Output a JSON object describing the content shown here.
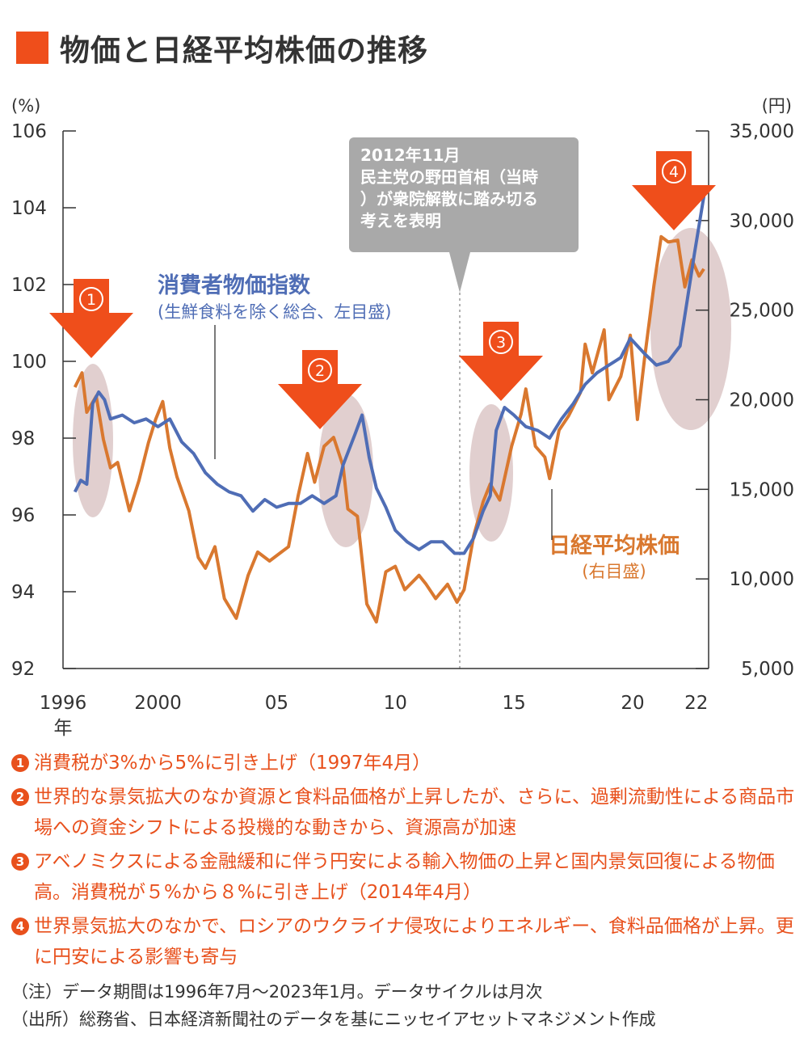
{
  "title": "物価と日経平均株価の推移",
  "colors": {
    "accent": "#ef4e1b",
    "cpi": "#4f6db5",
    "nikkei": "#d9782f",
    "highlight": "#c9a7a7",
    "callout_bg": "#a9a9a9"
  },
  "chart_data": {
    "type": "line",
    "left_axis": {
      "unit": "(%)",
      "ticks": [
        "106",
        "104",
        "102",
        "100",
        "98",
        "96",
        "94",
        "92"
      ],
      "ylim": [
        92,
        106
      ]
    },
    "right_axis": {
      "unit": "(円)",
      "ticks": [
        "35,000",
        "30,000",
        "25,000",
        "20,000",
        "15,000",
        "10,000",
        "5,000"
      ],
      "ylim": [
        5000,
        35000
      ]
    },
    "x_ticks": [
      "1996",
      "2000",
      "05",
      "10",
      "15",
      "20",
      "22"
    ],
    "x_suffix": "年",
    "series": [
      {
        "name": "消費者物価指数",
        "sublabel": "(生鮮食料を除く総合、左目盛)",
        "axis": "left",
        "points": [
          [
            1996.5,
            96.6
          ],
          [
            1996.75,
            96.9
          ],
          [
            1997.0,
            96.8
          ],
          [
            1997.25,
            98.9
          ],
          [
            1997.5,
            99.2
          ],
          [
            1997.75,
            99.0
          ],
          [
            1998.0,
            98.5
          ],
          [
            1998.5,
            98.6
          ],
          [
            1999.0,
            98.4
          ],
          [
            1999.5,
            98.5
          ],
          [
            2000.0,
            98.3
          ],
          [
            2000.5,
            98.5
          ],
          [
            2001.0,
            97.9
          ],
          [
            2001.5,
            97.6
          ],
          [
            2002.0,
            97.1
          ],
          [
            2002.5,
            96.8
          ],
          [
            2003.0,
            96.6
          ],
          [
            2003.5,
            96.5
          ],
          [
            2004.0,
            96.1
          ],
          [
            2004.5,
            96.4
          ],
          [
            2005.0,
            96.2
          ],
          [
            2005.5,
            96.3
          ],
          [
            2006.0,
            96.3
          ],
          [
            2006.5,
            96.5
          ],
          [
            2007.0,
            96.3
          ],
          [
            2007.5,
            96.5
          ],
          [
            2007.8,
            97.3
          ],
          [
            2008.3,
            98.1
          ],
          [
            2008.6,
            98.6
          ],
          [
            2008.9,
            97.5
          ],
          [
            2009.2,
            96.7
          ],
          [
            2009.6,
            96.2
          ],
          [
            2010.0,
            95.6
          ],
          [
            2010.5,
            95.3
          ],
          [
            2011.0,
            95.1
          ],
          [
            2011.5,
            95.3
          ],
          [
            2012.0,
            95.3
          ],
          [
            2012.5,
            95.0
          ],
          [
            2012.9,
            95.0
          ],
          [
            2013.3,
            95.4
          ],
          [
            2013.7,
            96.1
          ],
          [
            2014.0,
            96.5
          ],
          [
            2014.25,
            98.2
          ],
          [
            2014.6,
            98.8
          ],
          [
            2015.0,
            98.6
          ],
          [
            2015.5,
            98.3
          ],
          [
            2016.0,
            98.2
          ],
          [
            2016.5,
            98.0
          ],
          [
            2017.0,
            98.5
          ],
          [
            2017.5,
            98.9
          ],
          [
            2018.0,
            99.4
          ],
          [
            2018.5,
            99.7
          ],
          [
            2019.0,
            99.9
          ],
          [
            2019.5,
            100.1
          ],
          [
            2019.9,
            100.6
          ],
          [
            2020.5,
            100.2
          ],
          [
            2021.0,
            99.9
          ],
          [
            2021.5,
            100.0
          ],
          [
            2022.0,
            100.4
          ],
          [
            2022.3,
            101.6
          ],
          [
            2022.6,
            102.8
          ],
          [
            2023.0,
            104.3
          ]
        ]
      },
      {
        "name": "日経平均株価",
        "sublabel": "(右目盛)",
        "axis": "right",
        "points": [
          [
            1996.5,
            20700
          ],
          [
            1996.8,
            21500
          ],
          [
            1997.0,
            19300
          ],
          [
            1997.4,
            20200
          ],
          [
            1997.7,
            17800
          ],
          [
            1998.0,
            16200
          ],
          [
            1998.3,
            16500
          ],
          [
            1998.8,
            13800
          ],
          [
            1999.2,
            15500
          ],
          [
            1999.6,
            17600
          ],
          [
            1999.9,
            18900
          ],
          [
            2000.2,
            19900
          ],
          [
            2000.5,
            17300
          ],
          [
            2000.8,
            15700
          ],
          [
            2001.3,
            13800
          ],
          [
            2001.7,
            11200
          ],
          [
            2002.0,
            10600
          ],
          [
            2002.4,
            11800
          ],
          [
            2002.8,
            8900
          ],
          [
            2003.3,
            7800
          ],
          [
            2003.8,
            10200
          ],
          [
            2004.2,
            11500
          ],
          [
            2004.7,
            11000
          ],
          [
            2005.2,
            11500
          ],
          [
            2005.5,
            11800
          ],
          [
            2005.9,
            14600
          ],
          [
            2006.3,
            17000
          ],
          [
            2006.6,
            15400
          ],
          [
            2007.0,
            17400
          ],
          [
            2007.4,
            17900
          ],
          [
            2007.8,
            16300
          ],
          [
            2008.0,
            13900
          ],
          [
            2008.4,
            13500
          ],
          [
            2008.8,
            8600
          ],
          [
            2009.2,
            7600
          ],
          [
            2009.6,
            10400
          ],
          [
            2010.0,
            10700
          ],
          [
            2010.4,
            9400
          ],
          [
            2011.0,
            10200
          ],
          [
            2011.3,
            9700
          ],
          [
            2011.7,
            8900
          ],
          [
            2012.2,
            9700
          ],
          [
            2012.6,
            8700
          ],
          [
            2012.9,
            9400
          ],
          [
            2013.3,
            12400
          ],
          [
            2013.7,
            14300
          ],
          [
            2014.0,
            15300
          ],
          [
            2014.4,
            14400
          ],
          [
            2014.9,
            17400
          ],
          [
            2015.3,
            19200
          ],
          [
            2015.5,
            20600
          ],
          [
            2015.9,
            17400
          ],
          [
            2016.3,
            16800
          ],
          [
            2016.5,
            15600
          ],
          [
            2016.9,
            18300
          ],
          [
            2017.3,
            19100
          ],
          [
            2017.8,
            20400
          ],
          [
            2018.0,
            23100
          ],
          [
            2018.3,
            21500
          ],
          [
            2018.8,
            23900
          ],
          [
            2019.0,
            20000
          ],
          [
            2019.5,
            21300
          ],
          [
            2019.9,
            23600
          ],
          [
            2020.2,
            18900
          ],
          [
            2020.5,
            22300
          ],
          [
            2020.9,
            26400
          ],
          [
            2021.2,
            29100
          ],
          [
            2021.5,
            28800
          ],
          [
            2021.9,
            28900
          ],
          [
            2022.2,
            26300
          ],
          [
            2022.5,
            27800
          ],
          [
            2022.8,
            26900
          ],
          [
            2023.0,
            27300
          ]
        ]
      }
    ],
    "callout": "2012年11月\n民主党の野田首相（当時）が衆院解散に踏み切る考えを表明",
    "events": [
      "1",
      "2",
      "3",
      "4"
    ]
  },
  "notes": [
    {
      "num": "1",
      "text": "消費税が3%から5%に引き上げ（1997年4月）"
    },
    {
      "num": "2",
      "text": "世界的な景気拡大のなか資源と食料品価格が上昇したが、さらに、過剰流動性による商品市場への資金シフトによる投機的な動きから、資源高が加速"
    },
    {
      "num": "3",
      "text": "アベノミクスによる金融緩和に伴う円安による輸入物価の上昇と国内景気回復による物価高。消費税が５%から８%に引き上げ（2014年4月）"
    },
    {
      "num": "4",
      "text": "世界景気拡大のなかで、ロシアのウクライナ侵攻によりエネルギー、食料品価格が上昇。更に円安による影響も寄与"
    }
  ],
  "footnotes": {
    "note": "（注）データ期間は1996年7月～2023年1月。データサイクルは月次",
    "source": "（出所）総務省、日本経済新聞社のデータを基にニッセイアセットマネジメント作成"
  }
}
